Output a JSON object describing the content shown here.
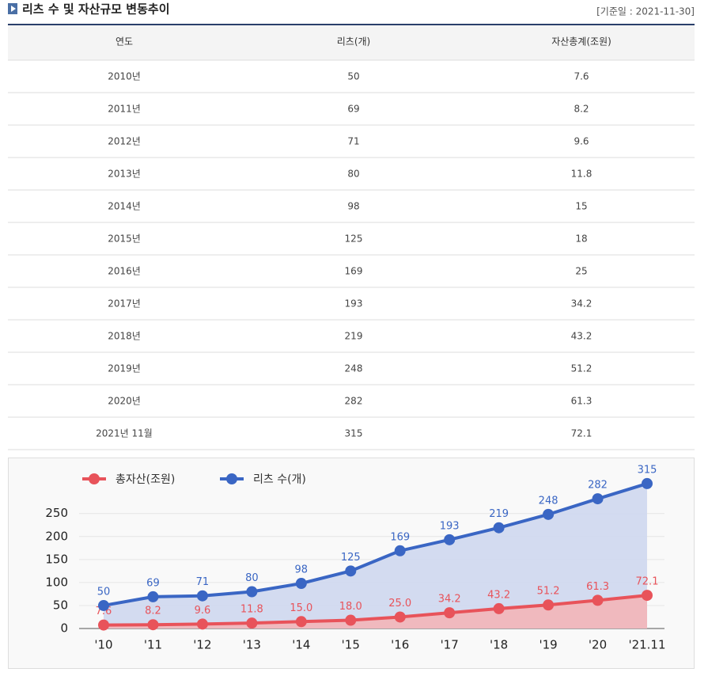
{
  "header": {
    "title": "리츠 수 및 자산규모 변동추이",
    "date_note": "[기준일 : 2021-11-30]"
  },
  "table": {
    "columns": [
      "연도",
      "리츠(개)",
      "자산총계(조원)"
    ],
    "rows": [
      [
        "2010년",
        50,
        7.6
      ],
      [
        "2011년",
        69,
        8.2
      ],
      [
        "2012년",
        71,
        9.6
      ],
      [
        "2013년",
        80,
        11.8
      ],
      [
        "2014년",
        98,
        15
      ],
      [
        "2015년",
        125,
        18
      ],
      [
        "2016년",
        169,
        25
      ],
      [
        "2017년",
        193,
        34.2
      ],
      [
        "2018년",
        219,
        43.2
      ],
      [
        "2019년",
        248,
        51.2
      ],
      [
        "2020년",
        282,
        61.3
      ],
      [
        "2021년 11월",
        315,
        72.1
      ]
    ]
  },
  "chart_data": {
    "type": "area",
    "categories": [
      "'10",
      "'11",
      "'12",
      "'13",
      "'14",
      "'15",
      "'16",
      "'17",
      "'18",
      "'19",
      "'20",
      "'21.11"
    ],
    "series": [
      {
        "name": "총자산(조원)",
        "color": "#e8535a",
        "area_color": "#f5b3b5",
        "values": [
          7.6,
          8.2,
          9.6,
          11.8,
          15,
          18,
          25,
          34.2,
          43.2,
          51.2,
          61.3,
          72.1
        ],
        "value_labels": [
          "7.6",
          "8.2",
          "9.6",
          "11.8",
          "15.0",
          "18.0",
          "25.0",
          "34.2",
          "43.2",
          "51.2",
          "61.3",
          "72.1"
        ]
      },
      {
        "name": "리츠 수(개)",
        "color": "#3a66c4",
        "area_color": "#cdd6ee",
        "values": [
          50,
          69,
          71,
          80,
          98,
          125,
          169,
          193,
          219,
          248,
          282,
          315
        ]
      }
    ],
    "ylim": [
      0,
      320
    ],
    "yticks": [
      0,
      50,
      100,
      150,
      200,
      250
    ],
    "grid": true
  }
}
